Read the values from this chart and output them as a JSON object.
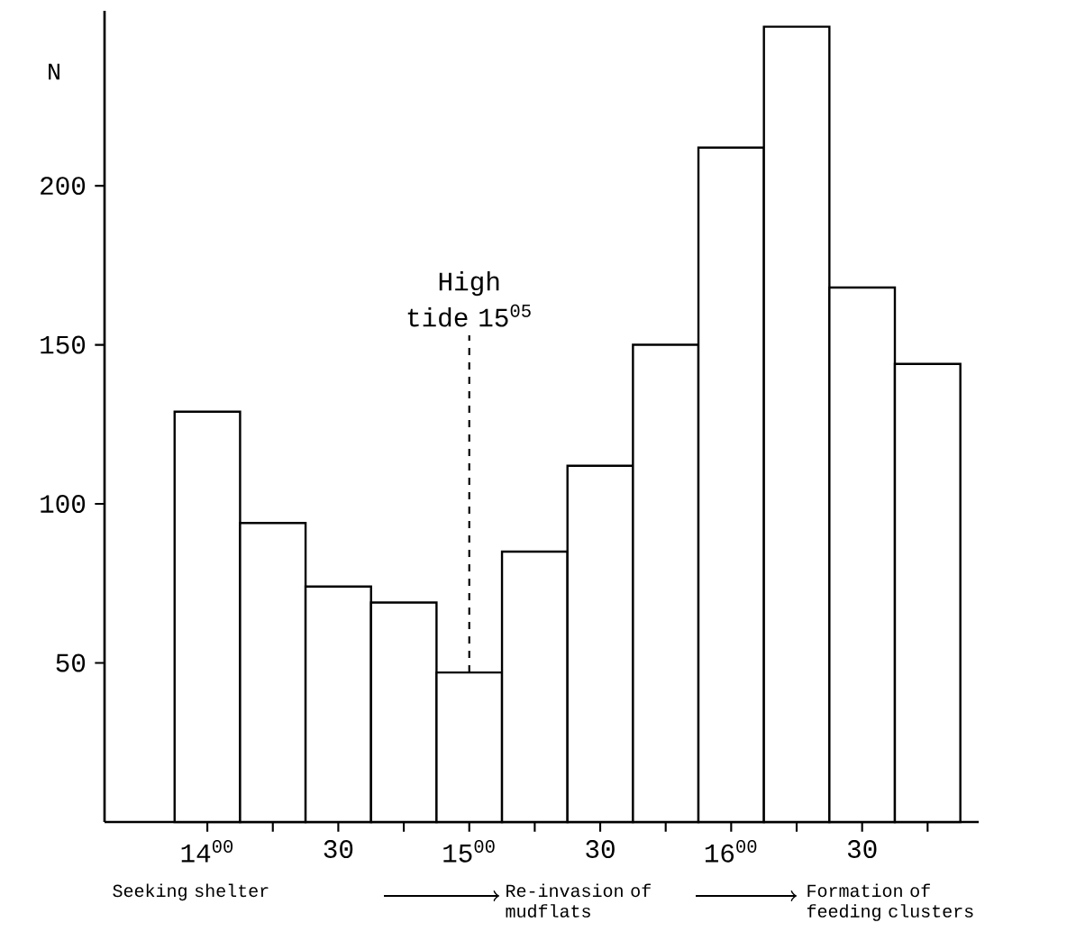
{
  "chart_data": {
    "type": "bar",
    "ylabel": "N",
    "categories": [
      "14$^{00}$",
      null,
      "30",
      null,
      "15$^{00}$",
      null,
      "30",
      null,
      "16$^{00}$",
      null,
      "30",
      null
    ],
    "values": [
      129,
      94,
      74,
      69,
      47,
      85,
      112,
      150,
      212,
      250,
      168,
      144
    ],
    "color": "#ffffff",
    "ylim": [
      0,
      255
    ],
    "yticks": [
      50,
      100,
      150,
      200
    ],
    "annotations": [
      {
        "text": "High tide 15$^{05}$",
        "x": "15$^{00}$",
        "y": 47
      },
      "Seeking shelter",
      "Re-invasion of mudflats",
      "Formation of feeding clusters"
    ],
    "grid": false
  }
}
